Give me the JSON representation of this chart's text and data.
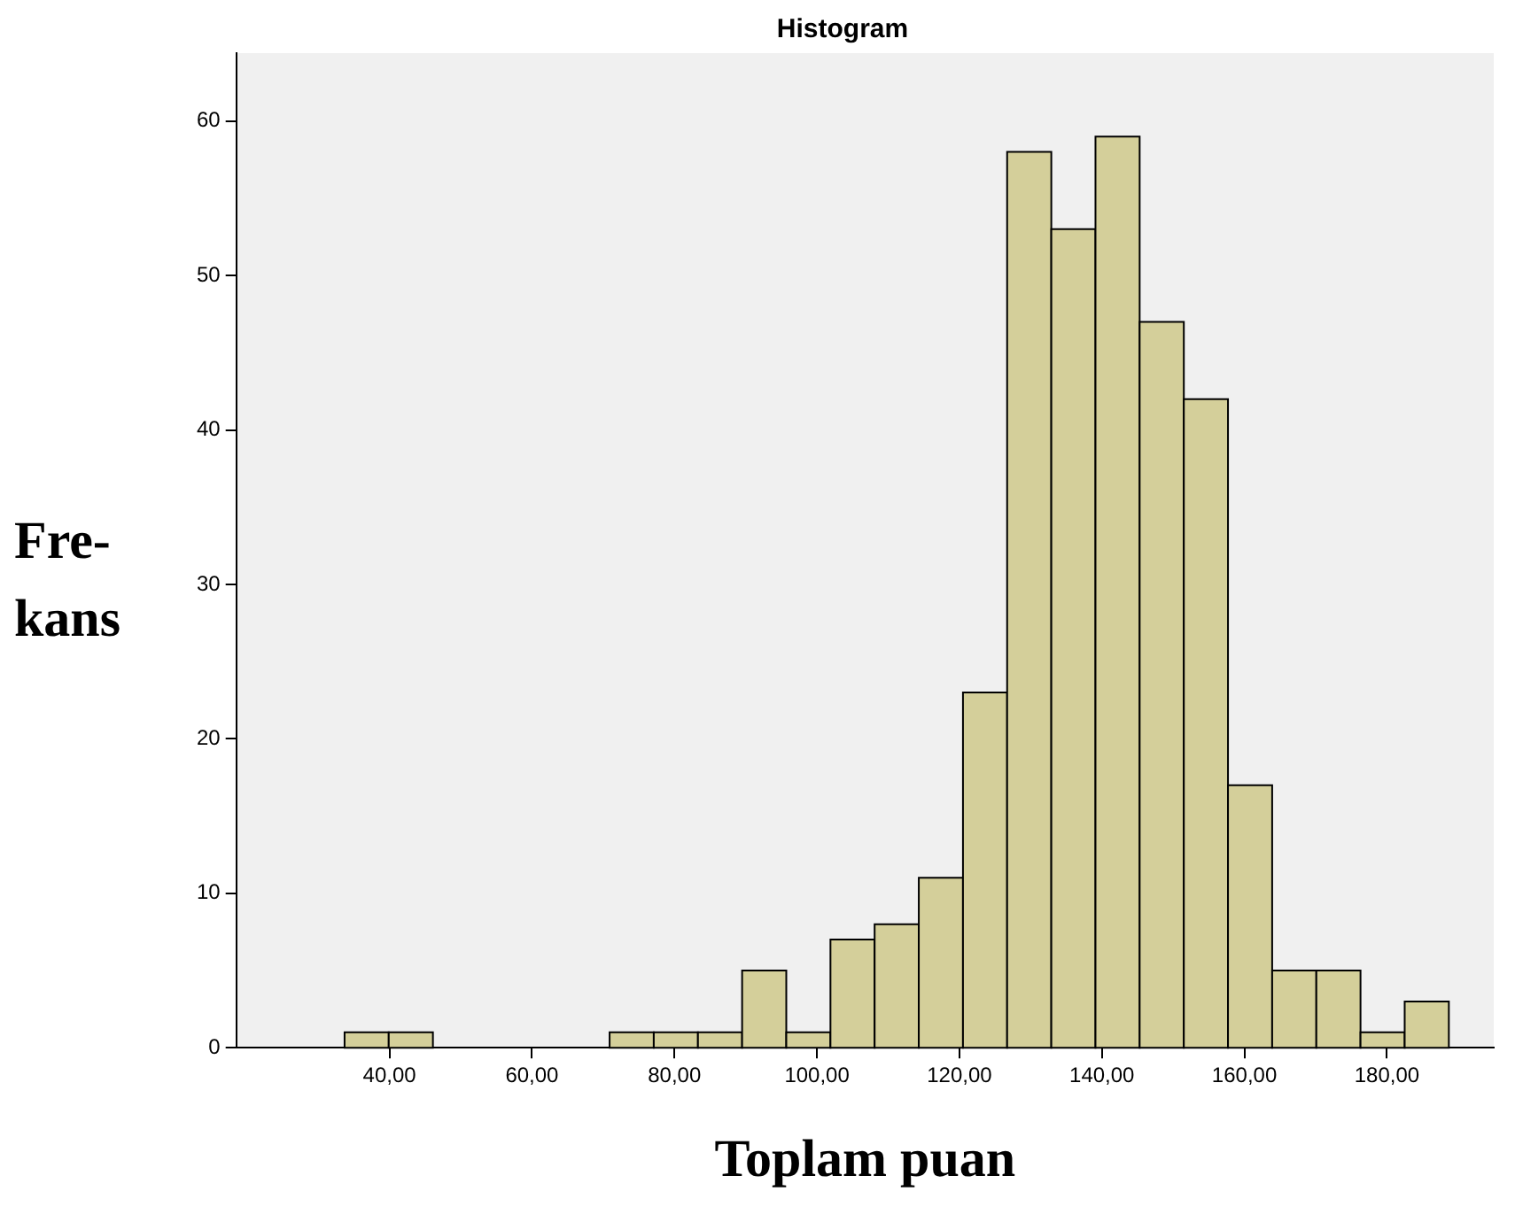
{
  "chart_data": {
    "type": "histogram",
    "title": "Histogram",
    "xlabel": "Toplam puan",
    "ylabel": "Fre-\nkans",
    "bins": [
      33.7,
      39.9,
      46.1,
      52.3,
      58.5,
      64.7,
      70.9,
      77.1,
      83.3,
      89.5,
      95.7,
      101.9,
      108.1,
      114.3,
      120.5,
      126.7,
      132.9,
      139.1,
      145.3,
      151.5,
      157.7,
      163.9,
      170.1,
      176.3,
      182.5,
      188.7
    ],
    "values": [
      1,
      1,
      0,
      0,
      0,
      0,
      1,
      1,
      1,
      5,
      1,
      7,
      8,
      11,
      23,
      58,
      53,
      59,
      47,
      42,
      17,
      5,
      5,
      1,
      3
    ],
    "color": "#d4cf9a",
    "xlim": [
      18.5,
      195
    ],
    "xticks": [
      {
        "value": 40,
        "label": "40,00"
      },
      {
        "value": 60,
        "label": "60,00"
      },
      {
        "value": 80,
        "label": "80,00"
      },
      {
        "value": 100,
        "label": "100,00"
      },
      {
        "value": 120,
        "label": "120,00"
      },
      {
        "value": 140,
        "label": "140,00"
      },
      {
        "value": 160,
        "label": "160,00"
      },
      {
        "value": 180,
        "label": "180,00"
      }
    ],
    "ylim": [
      0,
      64.4
    ],
    "yticks": [
      0,
      10,
      20,
      30,
      40,
      50,
      60
    ],
    "grid": false,
    "legend": false
  }
}
